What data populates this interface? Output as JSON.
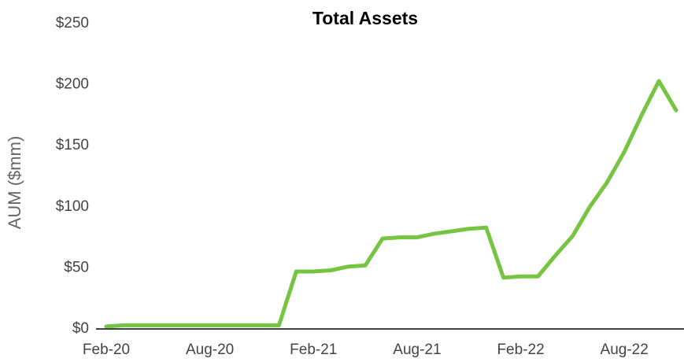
{
  "chart_data": {
    "type": "line",
    "title": "Total Assets",
    "ylabel": "AUM ($mm)",
    "x": [
      "2020-02",
      "2020-03",
      "2020-04",
      "2020-05",
      "2020-06",
      "2020-07",
      "2020-08",
      "2020-09",
      "2020-10",
      "2020-11",
      "2020-12",
      "2021-01",
      "2021-02",
      "2021-03",
      "2021-04",
      "2021-05",
      "2021-06",
      "2021-07",
      "2021-08",
      "2021-09",
      "2021-10",
      "2021-11",
      "2021-12",
      "2022-01",
      "2022-02",
      "2022-03",
      "2022-04",
      "2022-05",
      "2022-06",
      "2022-07",
      "2022-08",
      "2022-09",
      "2022-10",
      "2022-11"
    ],
    "series": [
      {
        "name": "AUM",
        "color": "#76c442",
        "values": [
          2,
          3,
          3,
          3,
          3,
          3,
          3,
          3,
          3,
          3,
          3,
          47,
          47,
          48,
          51,
          52,
          74,
          75,
          75,
          78,
          80,
          82,
          83,
          42,
          43,
          43,
          60,
          76,
          100,
          120,
          145,
          175,
          203,
          179
        ]
      }
    ],
    "xlim": [
      "2020-02",
      "2022-11"
    ],
    "xticks": [
      {
        "value": "2020-02",
        "label": "Feb-20"
      },
      {
        "value": "2020-08",
        "label": "Aug-20"
      },
      {
        "value": "2021-02",
        "label": "Feb-21"
      },
      {
        "value": "2021-08",
        "label": "Aug-21"
      },
      {
        "value": "2022-02",
        "label": "Feb-22"
      },
      {
        "value": "2022-08",
        "label": "Aug-22"
      }
    ],
    "ylim": [
      0,
      250
    ],
    "yticks": [
      {
        "value": 0,
        "label": "$0"
      },
      {
        "value": 50,
        "label": "$50"
      },
      {
        "value": 100,
        "label": "$100"
      },
      {
        "value": 150,
        "label": "$150"
      },
      {
        "value": 200,
        "label": "$200"
      },
      {
        "value": 250,
        "label": "$250"
      }
    ],
    "grid": false
  }
}
